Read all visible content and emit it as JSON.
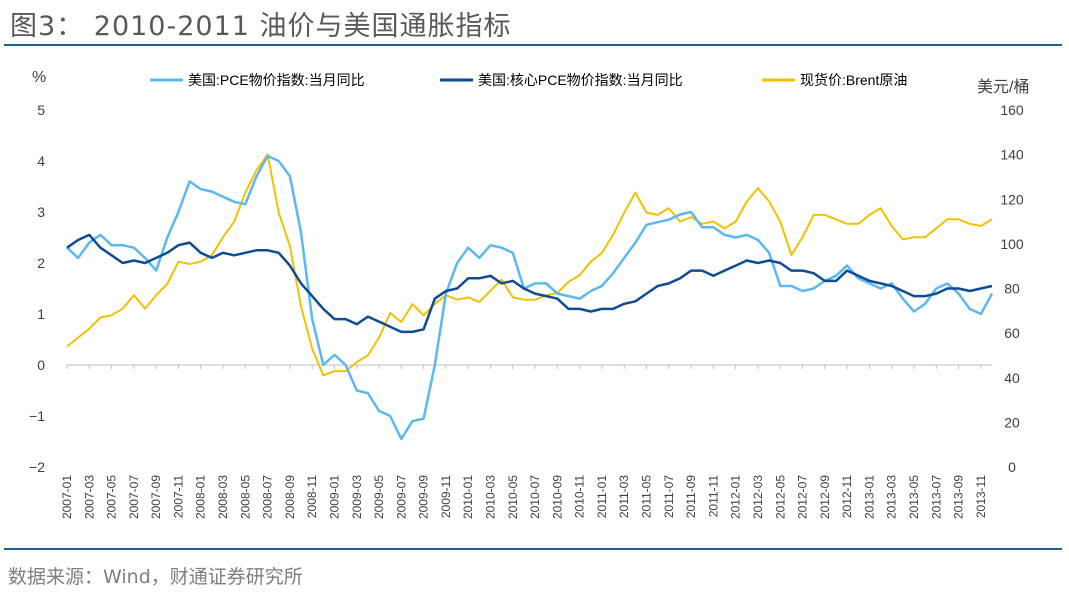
{
  "title": "图3： 2010-2011 油价与美国通胀指标",
  "source": "数据来源：Wind，财通证券研究所",
  "chart_data": {
    "type": "line",
    "left_unit": "%",
    "right_unit": "美元/桶",
    "ylim_left": [
      -2,
      5
    ],
    "ylim_right": [
      0,
      160
    ],
    "yticks_left": [
      -2,
      -1,
      0,
      1,
      2,
      3,
      4,
      5
    ],
    "yticks_right": [
      0,
      20,
      40,
      60,
      80,
      100,
      120,
      140,
      160
    ],
    "grid": false,
    "legend_placement": "top",
    "x_start": "2007-01",
    "x_end": "2013-12",
    "xtick_labels": [
      "2007-01",
      "2007-03",
      "2007-05",
      "2007-07",
      "2007-09",
      "2007-11",
      "2008-01",
      "2008-03",
      "2008-05",
      "2008-07",
      "2008-09",
      "2008-11",
      "2009-01",
      "2009-03",
      "2009-05",
      "2009-07",
      "2009-09",
      "2009-11",
      "2010-01",
      "2010-03",
      "2010-05",
      "2010-07",
      "2010-09",
      "2010-11",
      "2011-01",
      "2011-03",
      "2011-05",
      "2011-07",
      "2011-09",
      "2011-11",
      "2012-01",
      "2012-03",
      "2012-05",
      "2012-07",
      "2012-09",
      "2012-11",
      "2013-01",
      "2013-03",
      "2013-05",
      "2013-07",
      "2013-09",
      "2013-11"
    ],
    "series": [
      {
        "name": "美国:PCE物价指数:当月同比",
        "axis": "left",
        "color": "#5bb8f5",
        "values": [
          2.3,
          2.1,
          2.4,
          2.55,
          2.35,
          2.35,
          2.3,
          2.1,
          1.85,
          2.5,
          3.0,
          3.6,
          3.45,
          3.4,
          3.3,
          3.2,
          3.15,
          3.7,
          4.1,
          4.0,
          3.7,
          2.6,
          0.9,
          0.0,
          0.2,
          0.0,
          -0.5,
          -0.55,
          -0.9,
          -1.0,
          -1.45,
          -1.1,
          -1.05,
          0.0,
          1.4,
          2.0,
          2.3,
          2.1,
          2.35,
          2.3,
          2.2,
          1.5,
          1.6,
          1.6,
          1.4,
          1.35,
          1.3,
          1.45,
          1.55,
          1.8,
          2.1,
          2.4,
          2.75,
          2.8,
          2.85,
          2.95,
          3.0,
          2.7,
          2.7,
          2.55,
          2.5,
          2.55,
          2.45,
          2.2,
          1.55,
          1.55,
          1.45,
          1.5,
          1.65,
          1.75,
          1.95,
          1.7,
          1.6,
          1.5,
          1.6,
          1.3,
          1.05,
          1.2,
          1.5,
          1.6,
          1.4,
          1.1,
          1.0,
          1.4
        ]
      },
      {
        "name": "美国:核心PCE物价指数:当月同比",
        "axis": "left",
        "color": "#0e4c96",
        "values": [
          2.3,
          2.45,
          2.55,
          2.3,
          2.15,
          2.0,
          2.05,
          2.0,
          2.1,
          2.2,
          2.35,
          2.4,
          2.2,
          2.1,
          2.2,
          2.15,
          2.2,
          2.25,
          2.25,
          2.2,
          1.95,
          1.6,
          1.35,
          1.1,
          0.9,
          0.9,
          0.8,
          0.95,
          0.85,
          0.75,
          0.65,
          0.65,
          0.7,
          1.3,
          1.45,
          1.5,
          1.7,
          1.7,
          1.75,
          1.6,
          1.65,
          1.5,
          1.4,
          1.35,
          1.3,
          1.1,
          1.1,
          1.05,
          1.1,
          1.1,
          1.2,
          1.25,
          1.4,
          1.55,
          1.6,
          1.7,
          1.85,
          1.85,
          1.75,
          1.85,
          1.95,
          2.05,
          2.0,
          2.05,
          2.0,
          1.85,
          1.85,
          1.8,
          1.65,
          1.65,
          1.85,
          1.75,
          1.65,
          1.6,
          1.55,
          1.45,
          1.35,
          1.35,
          1.4,
          1.5,
          1.5,
          1.45,
          1.5,
          1.55
        ]
      },
      {
        "name": "现货价:Brent原油",
        "axis": "right",
        "color": "#f2c200",
        "values": [
          54,
          58,
          62,
          67,
          68,
          71,
          77,
          71,
          77,
          82,
          92,
          91,
          92,
          95,
          103,
          110,
          123,
          133,
          140,
          114,
          99,
          72,
          53,
          41,
          43,
          43,
          47,
          50,
          58,
          69,
          65,
          73,
          68,
          73,
          77,
          75,
          76,
          74,
          79,
          84,
          76,
          75,
          75,
          77,
          78,
          83,
          86,
          92,
          96,
          104,
          114,
          123,
          114,
          113,
          116,
          110,
          112,
          109,
          110,
          107,
          110,
          119,
          125,
          119,
          110,
          95,
          103,
          113,
          113,
          111,
          109,
          109,
          113,
          116,
          108,
          102,
          103,
          103,
          107,
          111,
          111,
          109,
          108,
          111
        ]
      }
    ]
  }
}
